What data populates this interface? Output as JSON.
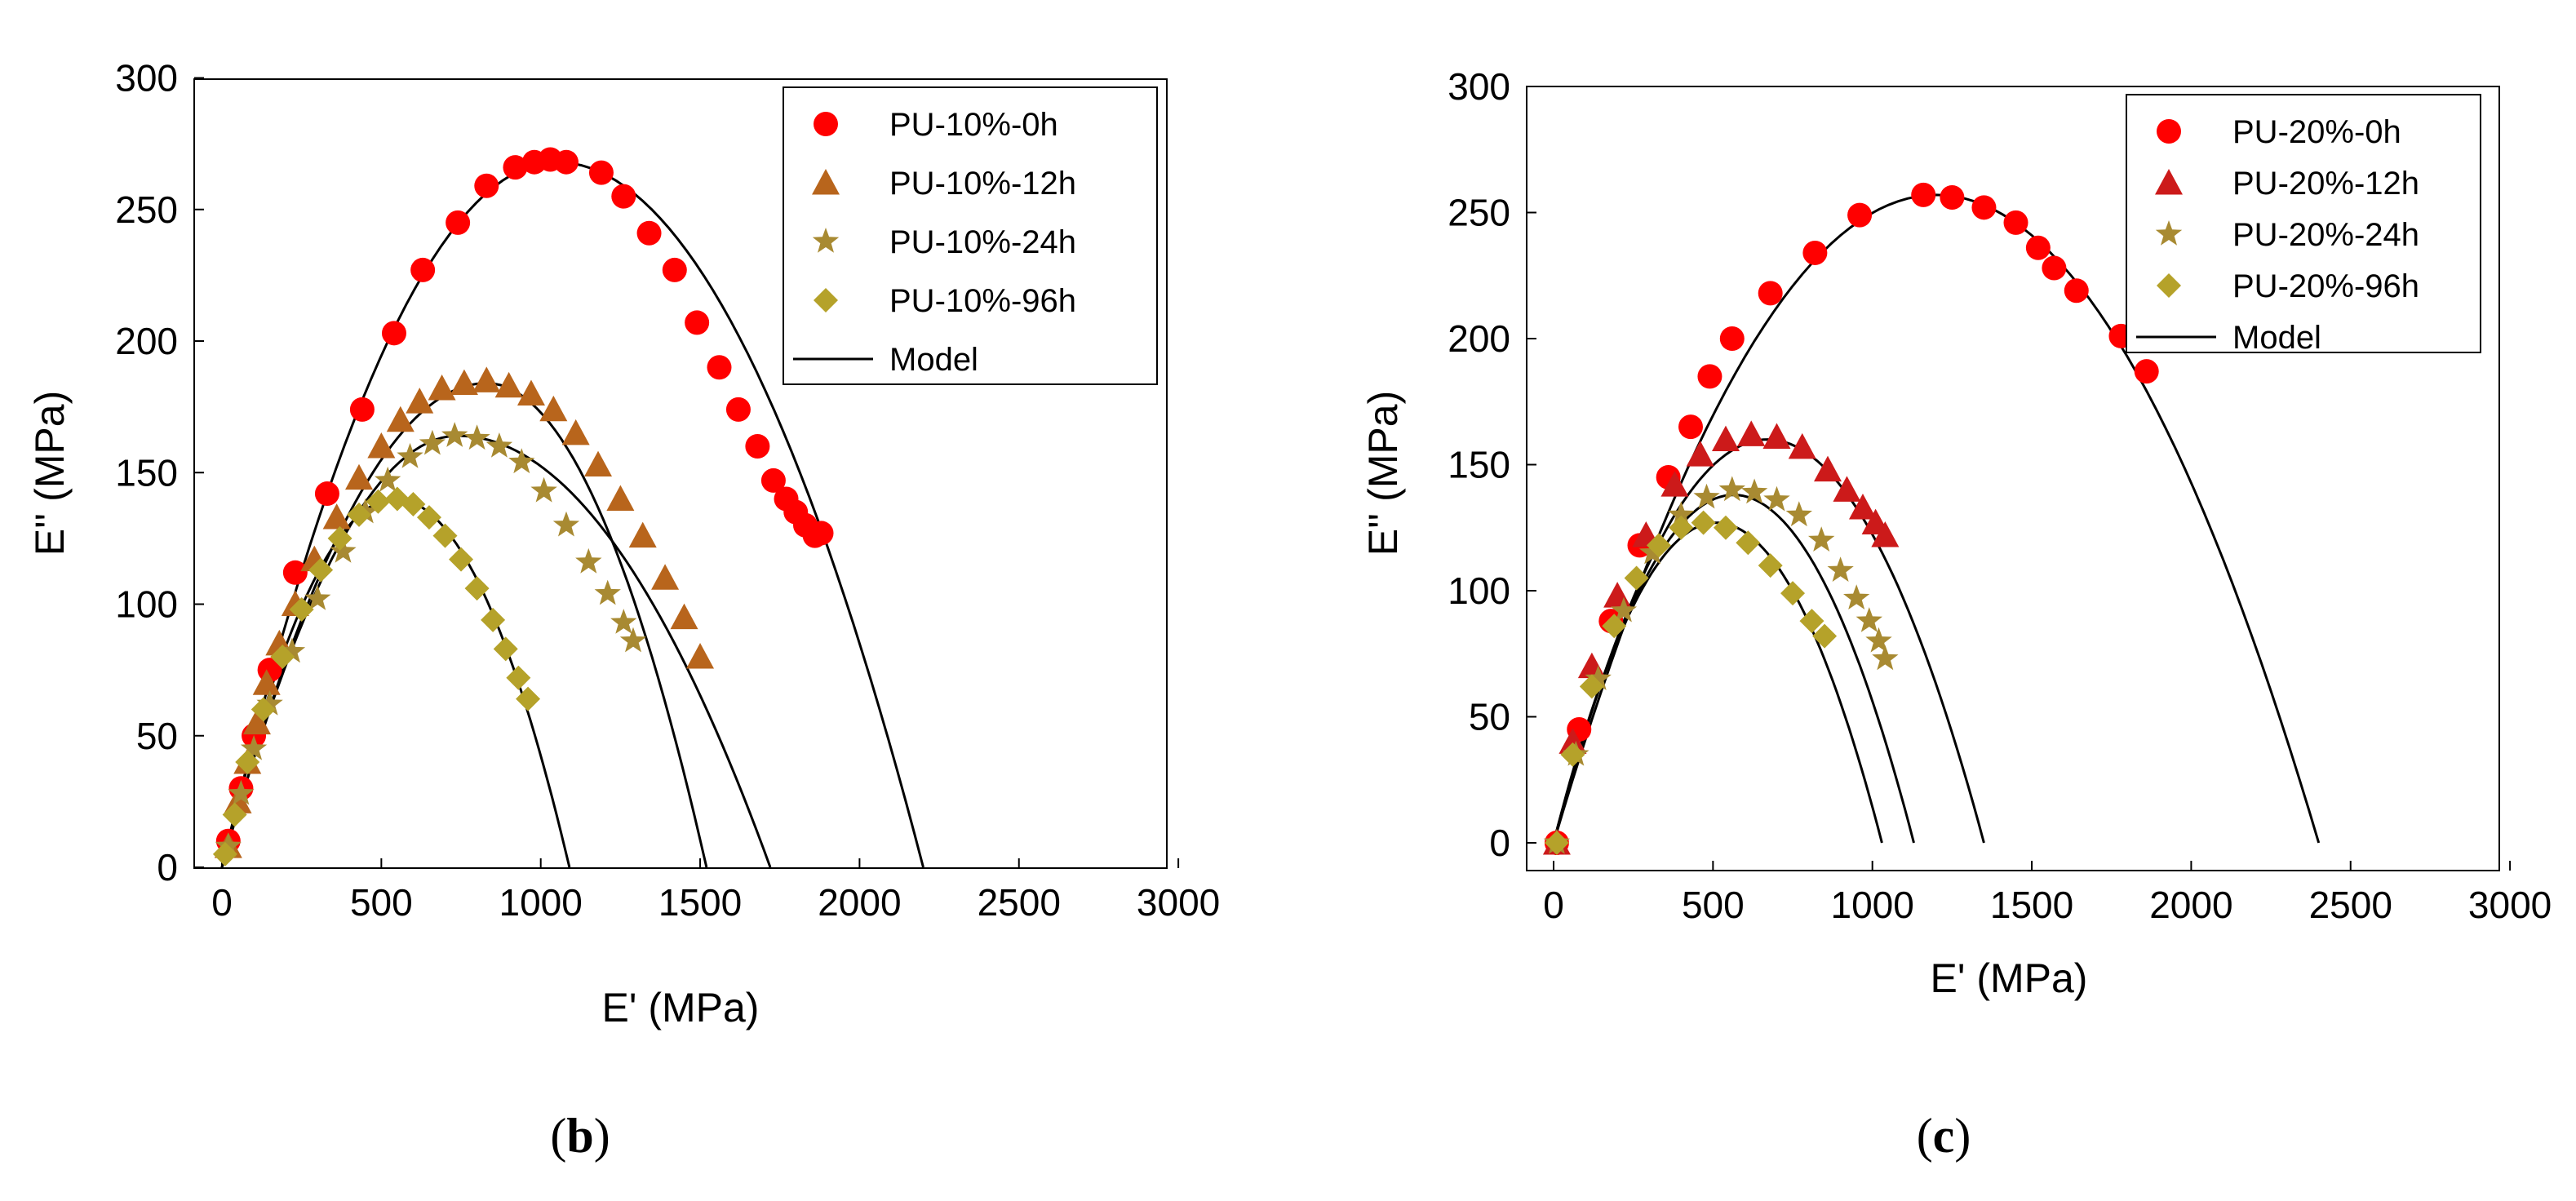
{
  "chart_data": [
    {
      "type": "scatter",
      "panel_label_prefix": "(",
      "panel_label_letter": "b",
      "panel_label_suffix": ")",
      "xlabel": "E' (MPa)",
      "ylabel": "E'' (MPa)",
      "xlim": [
        0,
        3000
      ],
      "ylim": [
        0,
        300
      ],
      "xticks": [
        0,
        500,
        1000,
        1500,
        2000,
        2500,
        3000
      ],
      "yticks": [
        0,
        50,
        100,
        150,
        200,
        250,
        300
      ],
      "legend_position": "top-right",
      "series": [
        {
          "name": "PU-10%-0h",
          "marker": "circle",
          "color": "#ff0000",
          "x": [
            20,
            60,
            100,
            150,
            230,
            330,
            440,
            540,
            630,
            740,
            830,
            920,
            980,
            1030,
            1080,
            1190,
            1260,
            1340,
            1420,
            1490,
            1560,
            1620,
            1680,
            1730,
            1770,
            1800,
            1830,
            1860,
            1880
          ],
          "y": [
            10,
            30,
            50,
            75,
            112,
            142,
            174,
            203,
            227,
            245,
            259,
            266,
            268,
            269,
            268,
            264,
            255,
            241,
            227,
            207,
            190,
            174,
            160,
            147,
            140,
            135,
            130,
            126,
            127
          ],
          "model": {
            "x0": 0,
            "x1": 2200,
            "peak_x": 1050,
            "peak_y": 268
          }
        },
        {
          "name": "PU-10%-12h",
          "marker": "triangle",
          "color": "#b8651c",
          "x": [
            20,
            50,
            80,
            110,
            140,
            180,
            230,
            290,
            360,
            430,
            500,
            560,
            620,
            690,
            760,
            830,
            900,
            970,
            1040,
            1110,
            1180,
            1250,
            1320,
            1390,
            1450,
            1500
          ],
          "y": [
            8,
            25,
            40,
            55,
            70,
            85,
            100,
            117,
            133,
            148,
            160,
            170,
            177,
            182,
            184,
            185,
            183,
            180,
            174,
            165,
            153,
            140,
            126,
            110,
            95,
            80
          ],
          "model": {
            "x0": 0,
            "x1": 1520,
            "peak_x": 830,
            "peak_y": 184
          }
        },
        {
          "name": "PU-10%-24h",
          "marker": "star",
          "color": "#a88a32",
          "x": [
            20,
            60,
            100,
            150,
            220,
            300,
            380,
            450,
            520,
            590,
            660,
            730,
            800,
            870,
            940,
            1010,
            1080,
            1150,
            1210,
            1260,
            1290
          ],
          "y": [
            8,
            28,
            45,
            62,
            82,
            102,
            120,
            135,
            147,
            156,
            161,
            164,
            163,
            160,
            154,
            143,
            130,
            116,
            104,
            93,
            86
          ],
          "model": {
            "x0": 0,
            "x1": 1720,
            "peak_x": 740,
            "peak_y": 164
          }
        },
        {
          "name": "PU-10%-96h",
          "marker": "diamond",
          "color": "#b5a22a",
          "x": [
            10,
            40,
            80,
            130,
            190,
            250,
            310,
            370,
            430,
            490,
            550,
            600,
            650,
            700,
            750,
            800,
            850,
            890,
            930,
            960
          ],
          "y": [
            5,
            20,
            40,
            60,
            80,
            98,
            113,
            125,
            134,
            139,
            140,
            138,
            133,
            126,
            117,
            106,
            94,
            83,
            72,
            64
          ],
          "model": {
            "x0": 0,
            "x1": 1090,
            "peak_x": 545,
            "peak_y": 140
          }
        }
      ],
      "model_label": "Model"
    },
    {
      "type": "scatter",
      "panel_label_prefix": "(",
      "panel_label_letter": "c",
      "panel_label_suffix": ")",
      "xlabel": "E' (MPa)",
      "ylabel": "E'' (MPa)",
      "xlim": [
        0,
        3000
      ],
      "ylim": [
        0,
        300
      ],
      "xticks": [
        0,
        500,
        1000,
        1500,
        2000,
        2500,
        3000
      ],
      "yticks": [
        0,
        50,
        100,
        150,
        200,
        250,
        300
      ],
      "legend_position": "top-right",
      "series": [
        {
          "name": "PU-20%-0h",
          "marker": "circle",
          "color": "#ff0000",
          "x": [
            10,
            80,
            180,
            270,
            360,
            430,
            490,
            560,
            680,
            820,
            960,
            1160,
            1250,
            1350,
            1450,
            1520,
            1570,
            1640,
            1780,
            1860
          ],
          "y": [
            0,
            45,
            88,
            118,
            145,
            165,
            185,
            200,
            218,
            234,
            249,
            257,
            256,
            252,
            246,
            236,
            228,
            219,
            201,
            187
          ],
          "model": {
            "x0": 0,
            "x1": 2400,
            "peak_x": 1200,
            "peak_y": 257
          }
        },
        {
          "name": "PU-20%-12h",
          "marker": "triangle",
          "color": "#cc1a1a",
          "x": [
            10,
            60,
            120,
            200,
            290,
            380,
            460,
            540,
            620,
            700,
            780,
            860,
            920,
            970,
            1010,
            1040
          ],
          "y": [
            0,
            40,
            70,
            98,
            122,
            142,
            154,
            160,
            162,
            161,
            157,
            148,
            140,
            133,
            127,
            122
          ],
          "model": {
            "x0": 0,
            "x1": 1350,
            "peak_x": 670,
            "peak_y": 160
          }
        },
        {
          "name": "PU-20%-24h",
          "marker": "star",
          "color": "#a88a32",
          "x": [
            10,
            70,
            140,
            220,
            310,
            400,
            480,
            560,
            630,
            700,
            770,
            840,
            900,
            950,
            990,
            1020,
            1040
          ],
          "y": [
            0,
            35,
            65,
            92,
            115,
            130,
            137,
            140,
            139,
            136,
            130,
            120,
            108,
            97,
            88,
            80,
            73
          ],
          "model": {
            "x0": 0,
            "x1": 1130,
            "peak_x": 565,
            "peak_y": 138
          }
        },
        {
          "name": "PU-20%-96h",
          "marker": "diamond",
          "color": "#b5a22a",
          "x": [
            10,
            60,
            120,
            190,
            260,
            330,
            400,
            470,
            540,
            610,
            680,
            750,
            810,
            850
          ],
          "y": [
            0,
            35,
            62,
            86,
            105,
            118,
            125,
            127,
            125,
            119,
            110,
            99,
            88,
            82
          ],
          "model": {
            "x0": 0,
            "x1": 1030,
            "peak_x": 510,
            "peak_y": 127
          }
        }
      ],
      "model_label": "Model"
    }
  ]
}
